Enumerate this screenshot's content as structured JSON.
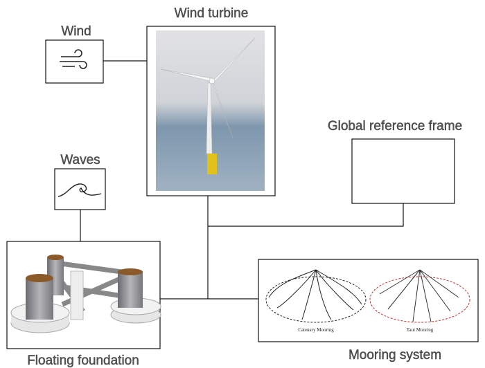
{
  "nodes": [
    {
      "label": "Wind"
    },
    {
      "label": "Wind turbine"
    },
    {
      "label": "Global reference frame"
    },
    {
      "label": "Waves"
    },
    {
      "label": "Floating foundation"
    },
    {
      "label": "Mooring system",
      "parts": [
        "Catenary Mooring",
        "Taut Mooring"
      ]
    }
  ]
}
